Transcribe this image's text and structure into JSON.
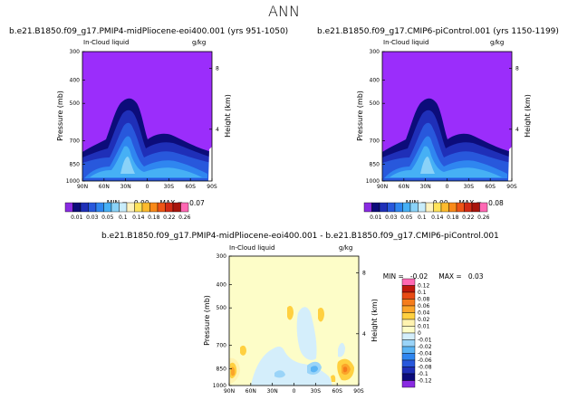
{
  "page_title": "ANN",
  "colors": {
    "band_bg": "#9b2dfb",
    "diff_bg": "#fdfdc8",
    "levels": [
      "#8a2be2",
      "#0c0c7a",
      "#1f2fb8",
      "#2858dc",
      "#2f86f0",
      "#46b0f5",
      "#8ad2f8",
      "#c8ecfb",
      "#fff3c0",
      "#ffe35a",
      "#fdbb2e",
      "#f98a1a",
      "#ee5516",
      "#d22a14",
      "#a8150c",
      "#ff69b4"
    ],
    "diff_levels": [
      "#8a2be2",
      "#0c0c7a",
      "#1f2fb8",
      "#2858dc",
      "#2f86f0",
      "#5ab4f4",
      "#9ad4f8",
      "#d4eefb",
      "#fdfdc8",
      "#fff3b0",
      "#ffd040",
      "#fba52a",
      "#f57c1c",
      "#e84a14",
      "#c0180c",
      "#ff69b4"
    ]
  },
  "chart_data": [
    {
      "type": "heatmap",
      "title": "b.e21.B1850.f09_g17.PMIP4-midPliocene-eoi400.001  (yrs 951-1050)",
      "field_label": "In-Cloud liquid",
      "units": "g/kg",
      "ylabel": "Pressure (mb)",
      "ylabel_right": "Height (km)",
      "x_ticks": [
        "90N",
        "60N",
        "30N",
        "0",
        "30S",
        "60S",
        "90S"
      ],
      "y_ticks": [
        "300",
        "400",
        "500",
        "700",
        "850",
        "1000"
      ],
      "y_ticks_right": [
        "8",
        "4"
      ],
      "min_label": "MIN =",
      "min_value": "0.00",
      "max_label": "MAX =",
      "max_value": "0.07",
      "colorbar_labels": [
        "0.01",
        "0.03",
        "0.05",
        "0.1",
        "0.14",
        "0.18",
        "0.22",
        "0.26"
      ]
    },
    {
      "type": "heatmap",
      "title": "b.e21.B1850.f09_g17.CMIP6-piControl.001  (yrs 1150-1199)",
      "field_label": "In-Cloud liquid",
      "units": "g/kg",
      "ylabel": "Pressure (mb)",
      "ylabel_right": "Height (km)",
      "x_ticks": [
        "90N",
        "60N",
        "30N",
        "0",
        "30S",
        "60S",
        "90S"
      ],
      "y_ticks": [
        "300",
        "400",
        "500",
        "700",
        "850",
        "1000"
      ],
      "y_ticks_right": [
        "8",
        "4"
      ],
      "min_label": "MIN =",
      "min_value": "0.00",
      "max_label": "MAX =",
      "max_value": "0.08",
      "colorbar_labels": [
        "0.01",
        "0.03",
        "0.05",
        "0.1",
        "0.14",
        "0.18",
        "0.22",
        "0.26"
      ]
    },
    {
      "type": "heatmap",
      "title": "b.e21.B1850.f09_g17.PMIP4-midPliocene-eoi400.001  -  b.e21.B1850.f09_g17.CMIP6-piControl.001",
      "field_label": "In-Cloud liquid",
      "units": "g/kg",
      "ylabel": "Pressure (mb)",
      "ylabel_right": "Height (km)",
      "x_ticks": [
        "90N",
        "60N",
        "30N",
        "0",
        "30S",
        "60S",
        "90S"
      ],
      "y_ticks": [
        "300",
        "400",
        "500",
        "700",
        "850",
        "1000"
      ],
      "y_ticks_right": [
        "8",
        "4"
      ],
      "min_label": "MIN =",
      "min_value": "-0.02",
      "max_label": "MAX =",
      "max_value": "0.03",
      "colorbar_labels": [
        "0.12",
        "0.1",
        "0.08",
        "0.06",
        "0.04",
        "0.02",
        "0.01",
        "0",
        "-0.01",
        "-0.02",
        "-0.04",
        "-0.06",
        "-0.08",
        "-0.1",
        "-0.12"
      ]
    }
  ]
}
